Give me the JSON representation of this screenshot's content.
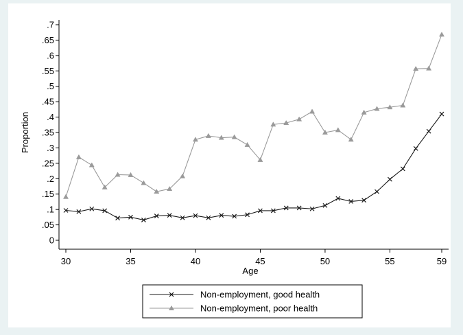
{
  "chart_data": {
    "type": "line",
    "title": "",
    "xlabel": "Age",
    "ylabel": "Proportion",
    "xlim": [
      30,
      59
    ],
    "ylim": [
      0,
      0.7
    ],
    "x_ticks": [
      30,
      35,
      40,
      45,
      50,
      55,
      59
    ],
    "x_tick_labels": [
      "30",
      "35",
      "40",
      "45",
      "50",
      "55",
      "59"
    ],
    "y_ticks": [
      0,
      0.05,
      0.1,
      0.15,
      0.2,
      0.25,
      0.3,
      0.35,
      0.4,
      0.45,
      0.5,
      0.55,
      0.6,
      0.65,
      0.7
    ],
    "y_tick_labels": [
      "0",
      ".05",
      ".1",
      ".15",
      ".2",
      ".25",
      ".3",
      ".35",
      ".4",
      ".45",
      ".5",
      ".55",
      ".6",
      ".65",
      ".7"
    ],
    "grid": false,
    "legend_position": "bottom",
    "x": [
      30,
      31,
      32,
      33,
      34,
      35,
      36,
      37,
      38,
      39,
      40,
      41,
      42,
      43,
      44,
      45,
      46,
      47,
      48,
      49,
      50,
      51,
      52,
      53,
      54,
      55,
      56,
      57,
      58,
      59
    ],
    "series": [
      {
        "name": "Non-employment, good health",
        "color": "#1a1a1a",
        "marker": "x",
        "values": [
          0.097,
          0.093,
          0.102,
          0.096,
          0.072,
          0.075,
          0.066,
          0.079,
          0.081,
          0.073,
          0.08,
          0.073,
          0.081,
          0.078,
          0.083,
          0.096,
          0.096,
          0.105,
          0.105,
          0.102,
          0.113,
          0.136,
          0.126,
          0.13,
          0.158,
          0.198,
          0.232,
          0.298,
          0.354,
          0.41
        ]
      },
      {
        "name": "Non-employment, poor health",
        "color": "#9a9a9a",
        "marker": "triangle",
        "values": [
          0.141,
          0.27,
          0.244,
          0.172,
          0.213,
          0.212,
          0.186,
          0.158,
          0.167,
          0.208,
          0.327,
          0.339,
          0.333,
          0.335,
          0.31,
          0.261,
          0.376,
          0.381,
          0.393,
          0.418,
          0.35,
          0.358,
          0.327,
          0.415,
          0.427,
          0.432,
          0.438,
          0.557,
          0.558,
          0.668
        ]
      }
    ]
  }
}
